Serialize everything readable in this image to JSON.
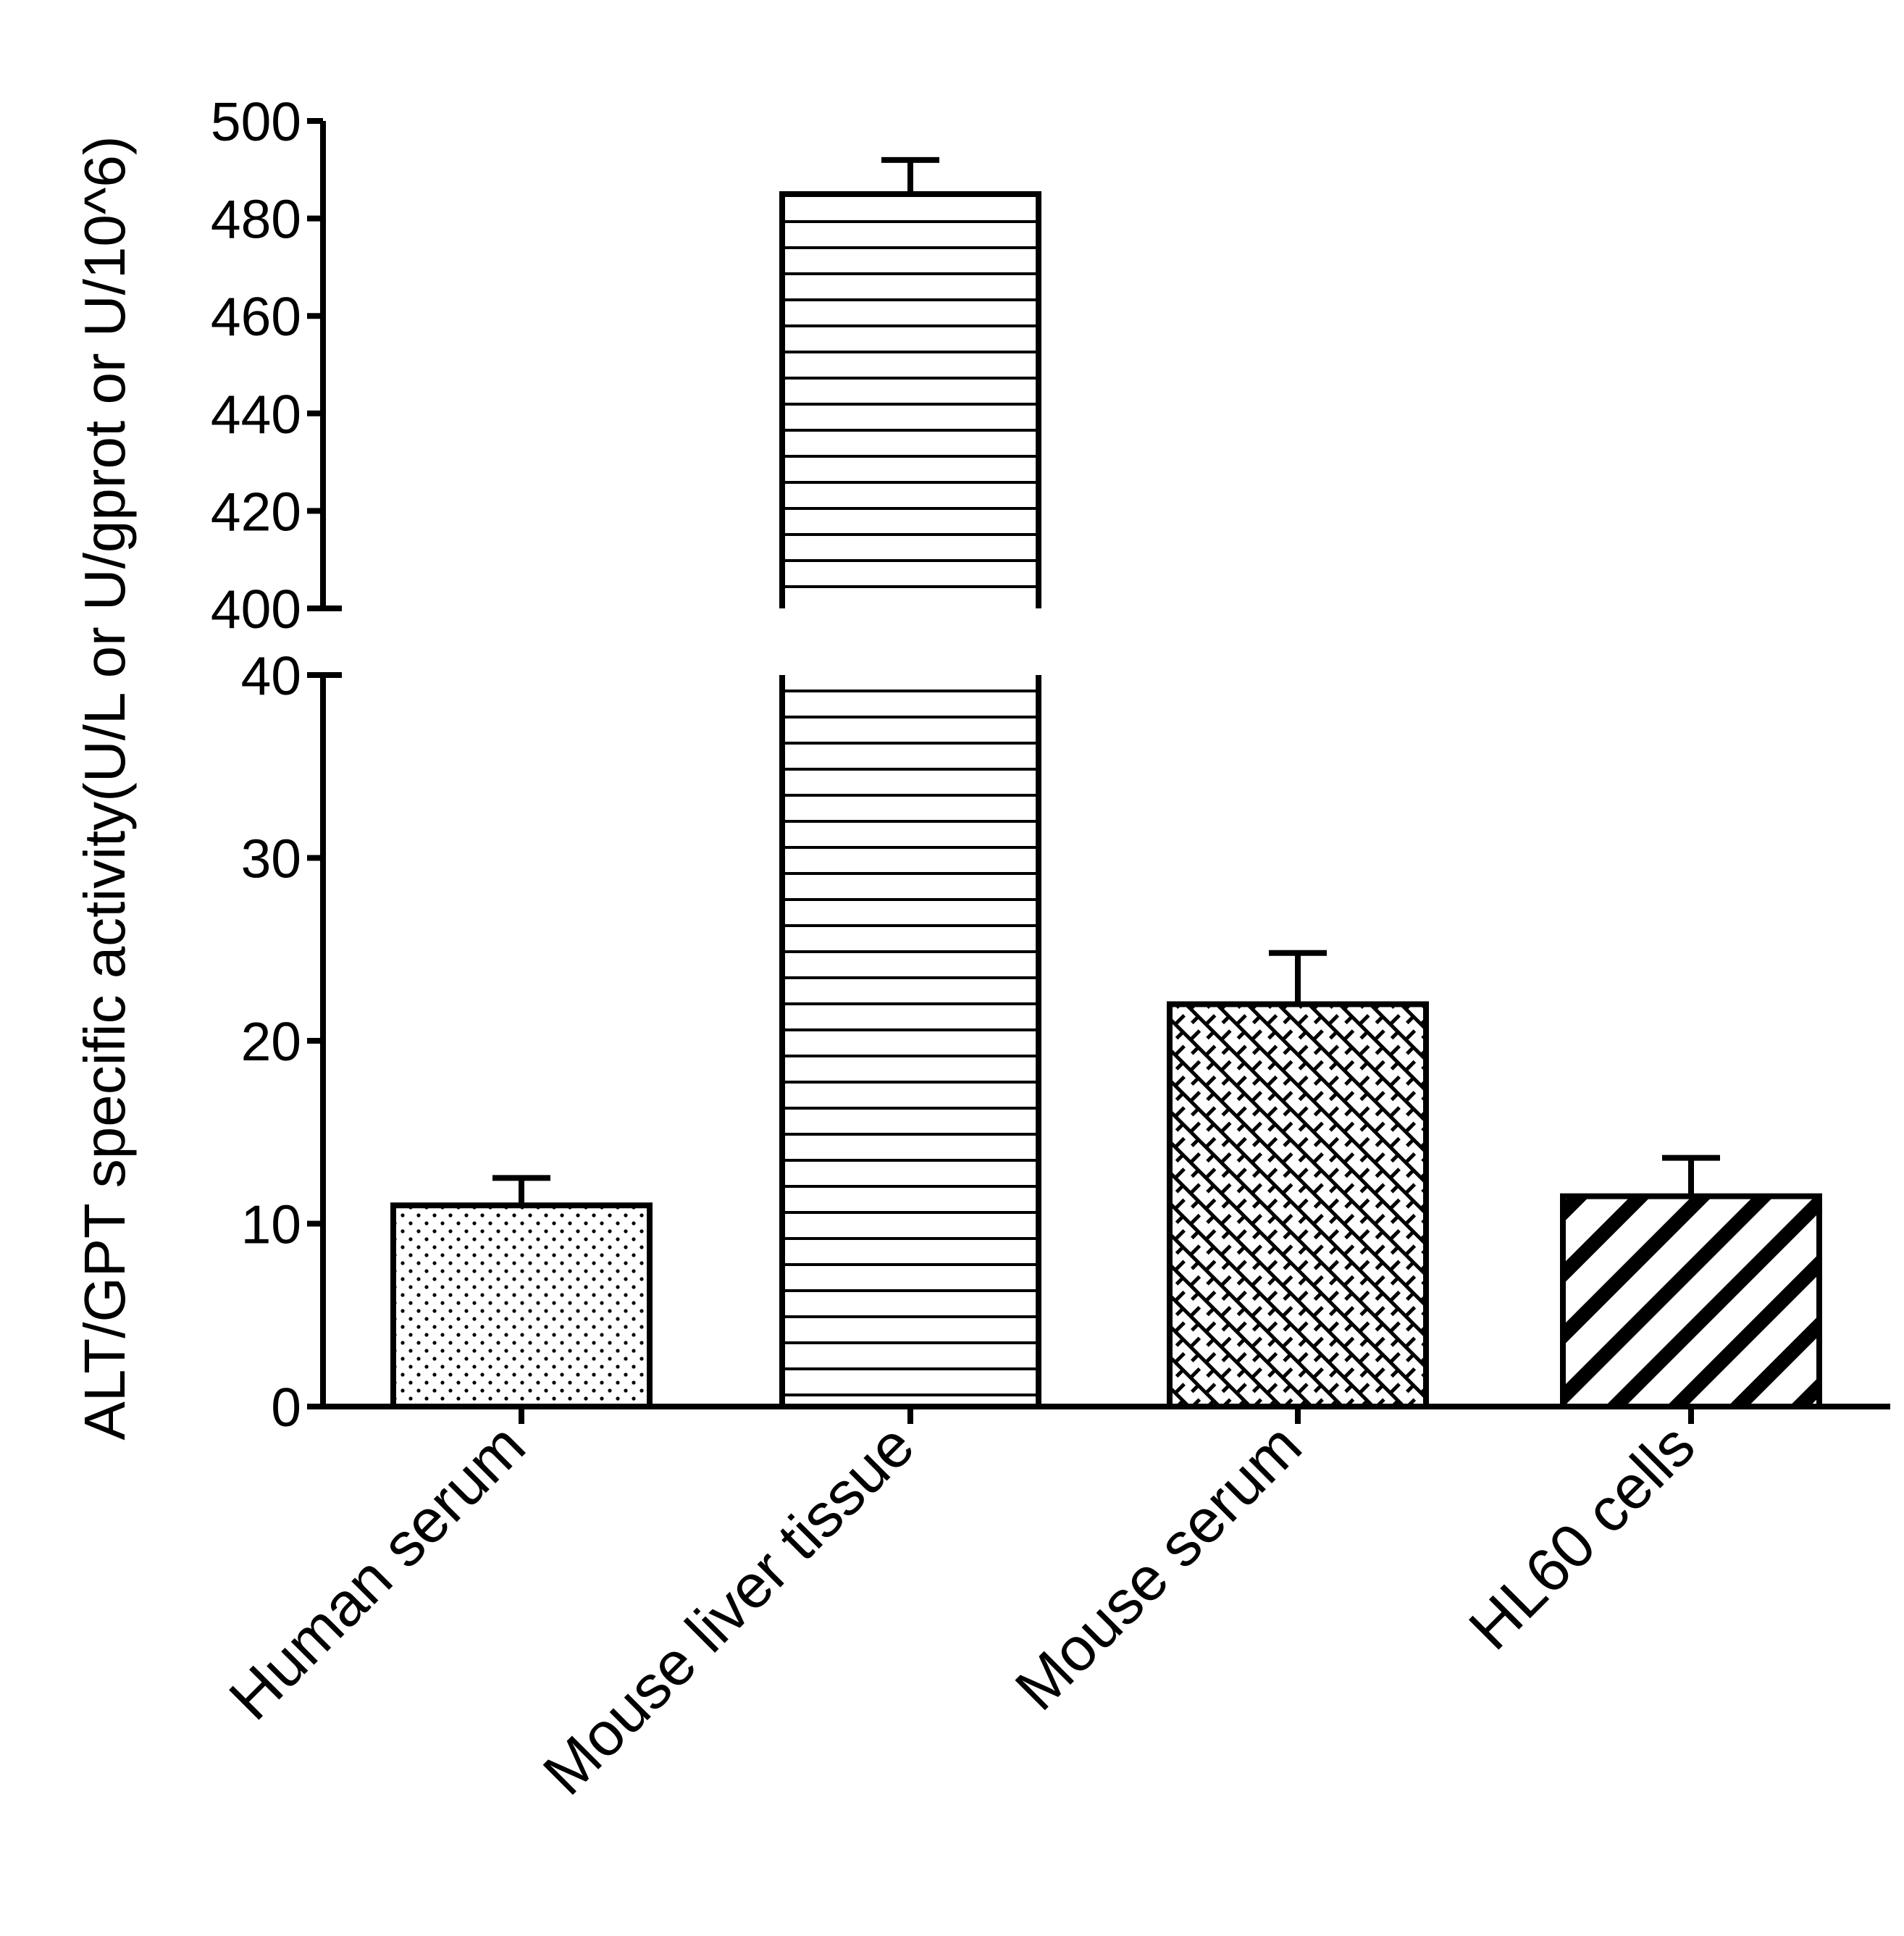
{
  "chart_data": {
    "type": "bar",
    "title": "",
    "xlabel": "",
    "ylabel": "ALT/GPT specific activity(U/L or U/gprot or U/10^6)",
    "categories": [
      "Human serum",
      "Mouse liver tissue",
      "Mouse serum",
      "HL60 cells"
    ],
    "values": [
      11,
      485,
      22,
      11.5
    ],
    "error_upper": [
      12.5,
      492,
      24.8,
      13.6
    ],
    "patterns": [
      "dots",
      "horizontal-lines",
      "crosshatch",
      "diagonal-stripes"
    ],
    "y_axis_broken": true,
    "y_segments": [
      {
        "range": [
          0,
          40
        ],
        "ticks": [
          0,
          10,
          20,
          30,
          40
        ]
      },
      {
        "range": [
          400,
          500
        ],
        "ticks": [
          400,
          420,
          440,
          460,
          480,
          500
        ]
      }
    ],
    "grid": false,
    "legend": "none",
    "colors": {
      "bars": "#000000",
      "background": "#ffffff"
    }
  }
}
